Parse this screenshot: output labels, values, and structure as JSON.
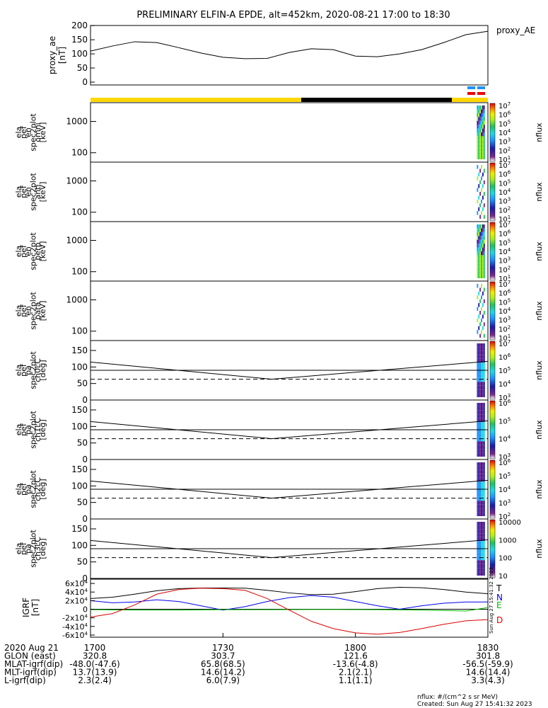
{
  "title": "PRELIMINARY ELFIN-A EPDE, alt=452km, 2020-08-21 17:00 to 18:30",
  "time_labels": [
    "1700",
    "1730",
    "1800",
    "1830"
  ],
  "ephemeris": {
    "rows": [
      {
        "name": "2020 Aug 21",
        "values": [
          "1700",
          "1730",
          "1800",
          "1830"
        ]
      },
      {
        "name": "GLON (east)",
        "values": [
          "320.8",
          "303.7",
          "121.6",
          "301.8"
        ]
      },
      {
        "name": "MLAT-igrf(dip)",
        "values": [
          "-48.0(-47.6)",
          "65.8(68.5)",
          "-13.6(-4.8)",
          "-56.5(-59.9)"
        ]
      },
      {
        "name": "MLT-igrf(dip)",
        "values": [
          "13.7(13.9)",
          "14.6(14.2)",
          "2.1(2.1)",
          "14.6(14.4)"
        ]
      },
      {
        "name": "L-igrf(dip)",
        "values": [
          "2.3(2.4)",
          "6.0(7.9)",
          "1.1(1.1)",
          "3.3(4.3)"
        ]
      }
    ]
  },
  "footer": {
    "units": "nflux: #/(cm^2 s sr MeV)",
    "created": "Created: Sun Aug 27 15:41:32 2023"
  },
  "side_stamp": "Sun Aug 27 15:41:32 2023",
  "colors": {
    "sunlight_bar": "#ffd700",
    "shadow_bar": "#000000",
    "fc_blue": "#1e90ff",
    "fc_red": "#ee0000"
  },
  "chart_data": [
    {
      "type": "line",
      "panel": "proxy_ae",
      "ylabel": [
        "proxy_ae",
        "[nT]"
      ],
      "legend": "proxy_AE",
      "ylim": [
        0,
        200
      ],
      "yticks": [
        "0",
        "50",
        "100",
        "150",
        "200"
      ],
      "x_minutes": [
        0,
        5,
        10,
        15,
        20,
        25,
        30,
        35,
        40,
        45,
        50,
        55,
        60,
        65,
        70,
        75,
        80,
        85,
        90
      ],
      "values": [
        110,
        128,
        143,
        140,
        122,
        103,
        88,
        83,
        84,
        105,
        118,
        115,
        92,
        90,
        100,
        115,
        140,
        168,
        180
      ]
    },
    {
      "type": "heatmap",
      "panel": "spec_omni",
      "ylabel": [
        "ela",
        "pef",
        "en",
        "spec2plot",
        "omni",
        "[keV]"
      ],
      "yscale": "log",
      "yticks": [
        "100",
        "1000"
      ],
      "colorbar": {
        "label": "nflux",
        "ticks": [
          "10^1",
          "10^2",
          "10^3",
          "10^4",
          "10^5",
          "10^6",
          "10^7"
        ]
      },
      "active_minutes": [
        87.5,
        89
      ]
    },
    {
      "type": "heatmap",
      "panel": "spec_anti",
      "ylabel": [
        "ela",
        "pef",
        "en",
        "spec2plot",
        "anti",
        "[keV]"
      ],
      "yscale": "log",
      "yticks": [
        "100",
        "1000"
      ],
      "colorbar": {
        "label": "nflux",
        "ticks": [
          "10^1",
          "10^2",
          "10^3",
          "10^4",
          "10^5",
          "10^6",
          "10^7"
        ]
      },
      "active_minutes": [
        87.5,
        89
      ]
    },
    {
      "type": "heatmap",
      "panel": "spec_perp",
      "ylabel": [
        "ela",
        "pef",
        "en",
        "spec2plot",
        "perp",
        "[keV]"
      ],
      "yscale": "log",
      "yticks": [
        "100",
        "1000"
      ],
      "colorbar": {
        "label": "nflux",
        "ticks": [
          "10^1",
          "10^2",
          "10^3",
          "10^4",
          "10^5",
          "10^6",
          "10^7"
        ]
      },
      "active_minutes": [
        87.5,
        89
      ]
    },
    {
      "type": "heatmap",
      "panel": "spec_para",
      "ylabel": [
        "ela",
        "pef",
        "en",
        "spec2plot",
        "para",
        "[keV]"
      ],
      "yscale": "log",
      "yticks": [
        "100",
        "1000"
      ],
      "colorbar": {
        "label": "nflux",
        "ticks": [
          "10^1",
          "10^2",
          "10^3",
          "10^4",
          "10^5",
          "10^6",
          "10^7"
        ]
      },
      "active_minutes": [
        87.5,
        89
      ]
    },
    {
      "type": "heatmap",
      "panel": "pa_ch0",
      "ylabel": [
        "ela",
        "pef",
        "pa",
        "spec2plot",
        "ch0LC",
        "[deg]"
      ],
      "ylim": [
        0,
        180
      ],
      "yticks": [
        "0",
        "50",
        "100",
        "150"
      ],
      "colorbar": {
        "label": "nflux",
        "ticks": [
          "10^3",
          "10^4",
          "10^5",
          "10^6",
          "10^7"
        ]
      },
      "loss_cone_x": [
        0,
        41,
        90
      ],
      "loss_cone_y": [
        115,
        63,
        117
      ],
      "horizontal_lines": [
        {
          "y": 90,
          "style": "solid"
        },
        {
          "y": 63,
          "style": "dashed"
        }
      ],
      "active_minutes": [
        87.5,
        89
      ]
    },
    {
      "type": "heatmap",
      "panel": "pa_ch1",
      "ylabel": [
        "ela",
        "pef",
        "pa",
        "spec2plot",
        "ch1LC",
        "[deg]"
      ],
      "ylim": [
        0,
        180
      ],
      "yticks": [
        "0",
        "50",
        "100",
        "150"
      ],
      "colorbar": {
        "label": "nflux",
        "ticks": [
          "10^3",
          "10^4",
          "10^5",
          "10^6"
        ]
      },
      "loss_cone_x": [
        0,
        41,
        90
      ],
      "loss_cone_y": [
        115,
        63,
        117
      ],
      "horizontal_lines": [
        {
          "y": 90,
          "style": "solid"
        },
        {
          "y": 63,
          "style": "dashed"
        }
      ],
      "active_minutes": [
        87.5,
        89
      ]
    },
    {
      "type": "heatmap",
      "panel": "pa_ch2",
      "ylabel": [
        "ela",
        "pef",
        "pa",
        "spec2plot",
        "ch2LC",
        "[deg]"
      ],
      "ylim": [
        0,
        180
      ],
      "yticks": [
        "0",
        "50",
        "100",
        "150"
      ],
      "colorbar": {
        "label": "nflux",
        "ticks": [
          "10^2",
          "10^3",
          "10^4",
          "10^5",
          "10^6"
        ]
      },
      "loss_cone_x": [
        0,
        41,
        90
      ],
      "loss_cone_y": [
        115,
        63,
        117
      ],
      "horizontal_lines": [
        {
          "y": 90,
          "style": "solid"
        },
        {
          "y": 63,
          "style": "dashed"
        }
      ],
      "active_minutes": [
        87.5,
        89
      ]
    },
    {
      "type": "heatmap",
      "panel": "pa_ch3",
      "ylabel": [
        "ela",
        "pef",
        "pa",
        "spec2plot",
        "ch3LC",
        "[deg]"
      ],
      "ylim": [
        0,
        180
      ],
      "yticks": [
        "0",
        "50",
        "100",
        "150"
      ],
      "colorbar": {
        "label": "nflux",
        "ticks": [
          "10",
          "100",
          "1000",
          "10000"
        ]
      },
      "loss_cone_x": [
        0,
        41,
        90
      ],
      "loss_cone_y": [
        115,
        63,
        117
      ],
      "horizontal_lines": [
        {
          "y": 90,
          "style": "solid"
        },
        {
          "y": 63,
          "style": "dashed"
        }
      ],
      "active_minutes": [
        87.5,
        89
      ]
    },
    {
      "type": "line",
      "panel": "igrf",
      "ylabel": [
        "IGRF",
        "[nT]"
      ],
      "ylim": [
        -65000,
        70000
      ],
      "yticks": [
        "-6x10^4",
        "-4x10^4",
        "-2x10^4",
        "0",
        "2x10^4",
        "4x10^4",
        "6x10^4"
      ],
      "x_minutes": [
        0,
        5,
        10,
        15,
        20,
        25,
        30,
        35,
        40,
        45,
        50,
        55,
        60,
        65,
        70,
        75,
        80,
        85,
        90
      ],
      "series": [
        {
          "name": "T",
          "color": "#000000",
          "values": [
            25000,
            28000,
            35000,
            43000,
            48000,
            49500,
            49500,
            49000,
            44000,
            38000,
            34000,
            35000,
            41000,
            48000,
            51000,
            50000,
            46000,
            40000,
            36000
          ]
        },
        {
          "name": "N",
          "color": "#0000ee",
          "values": [
            20000,
            15000,
            17000,
            22000,
            18000,
            8000,
            -2000,
            6000,
            18000,
            27000,
            32000,
            28000,
            18000,
            8000,
            0,
            8000,
            14000,
            17000,
            17000
          ]
        },
        {
          "name": "E",
          "color": "#00bb00",
          "values": [
            -1000,
            -1500,
            -2000,
            -2000,
            -2000,
            -1500,
            -1000,
            -1000,
            -1000,
            -800,
            -600,
            -600,
            -800,
            -1000,
            -1500,
            -2000,
            -3000,
            -4000,
            4000
          ]
        },
        {
          "name": "D",
          "color": "#dd0000",
          "values": [
            -18000,
            -10000,
            10000,
            35000,
            46000,
            49000,
            48000,
            44000,
            25000,
            -2000,
            -28000,
            -45000,
            -55000,
            -58000,
            -54000,
            -45000,
            -35000,
            -27000,
            -24000
          ]
        }
      ]
    }
  ]
}
